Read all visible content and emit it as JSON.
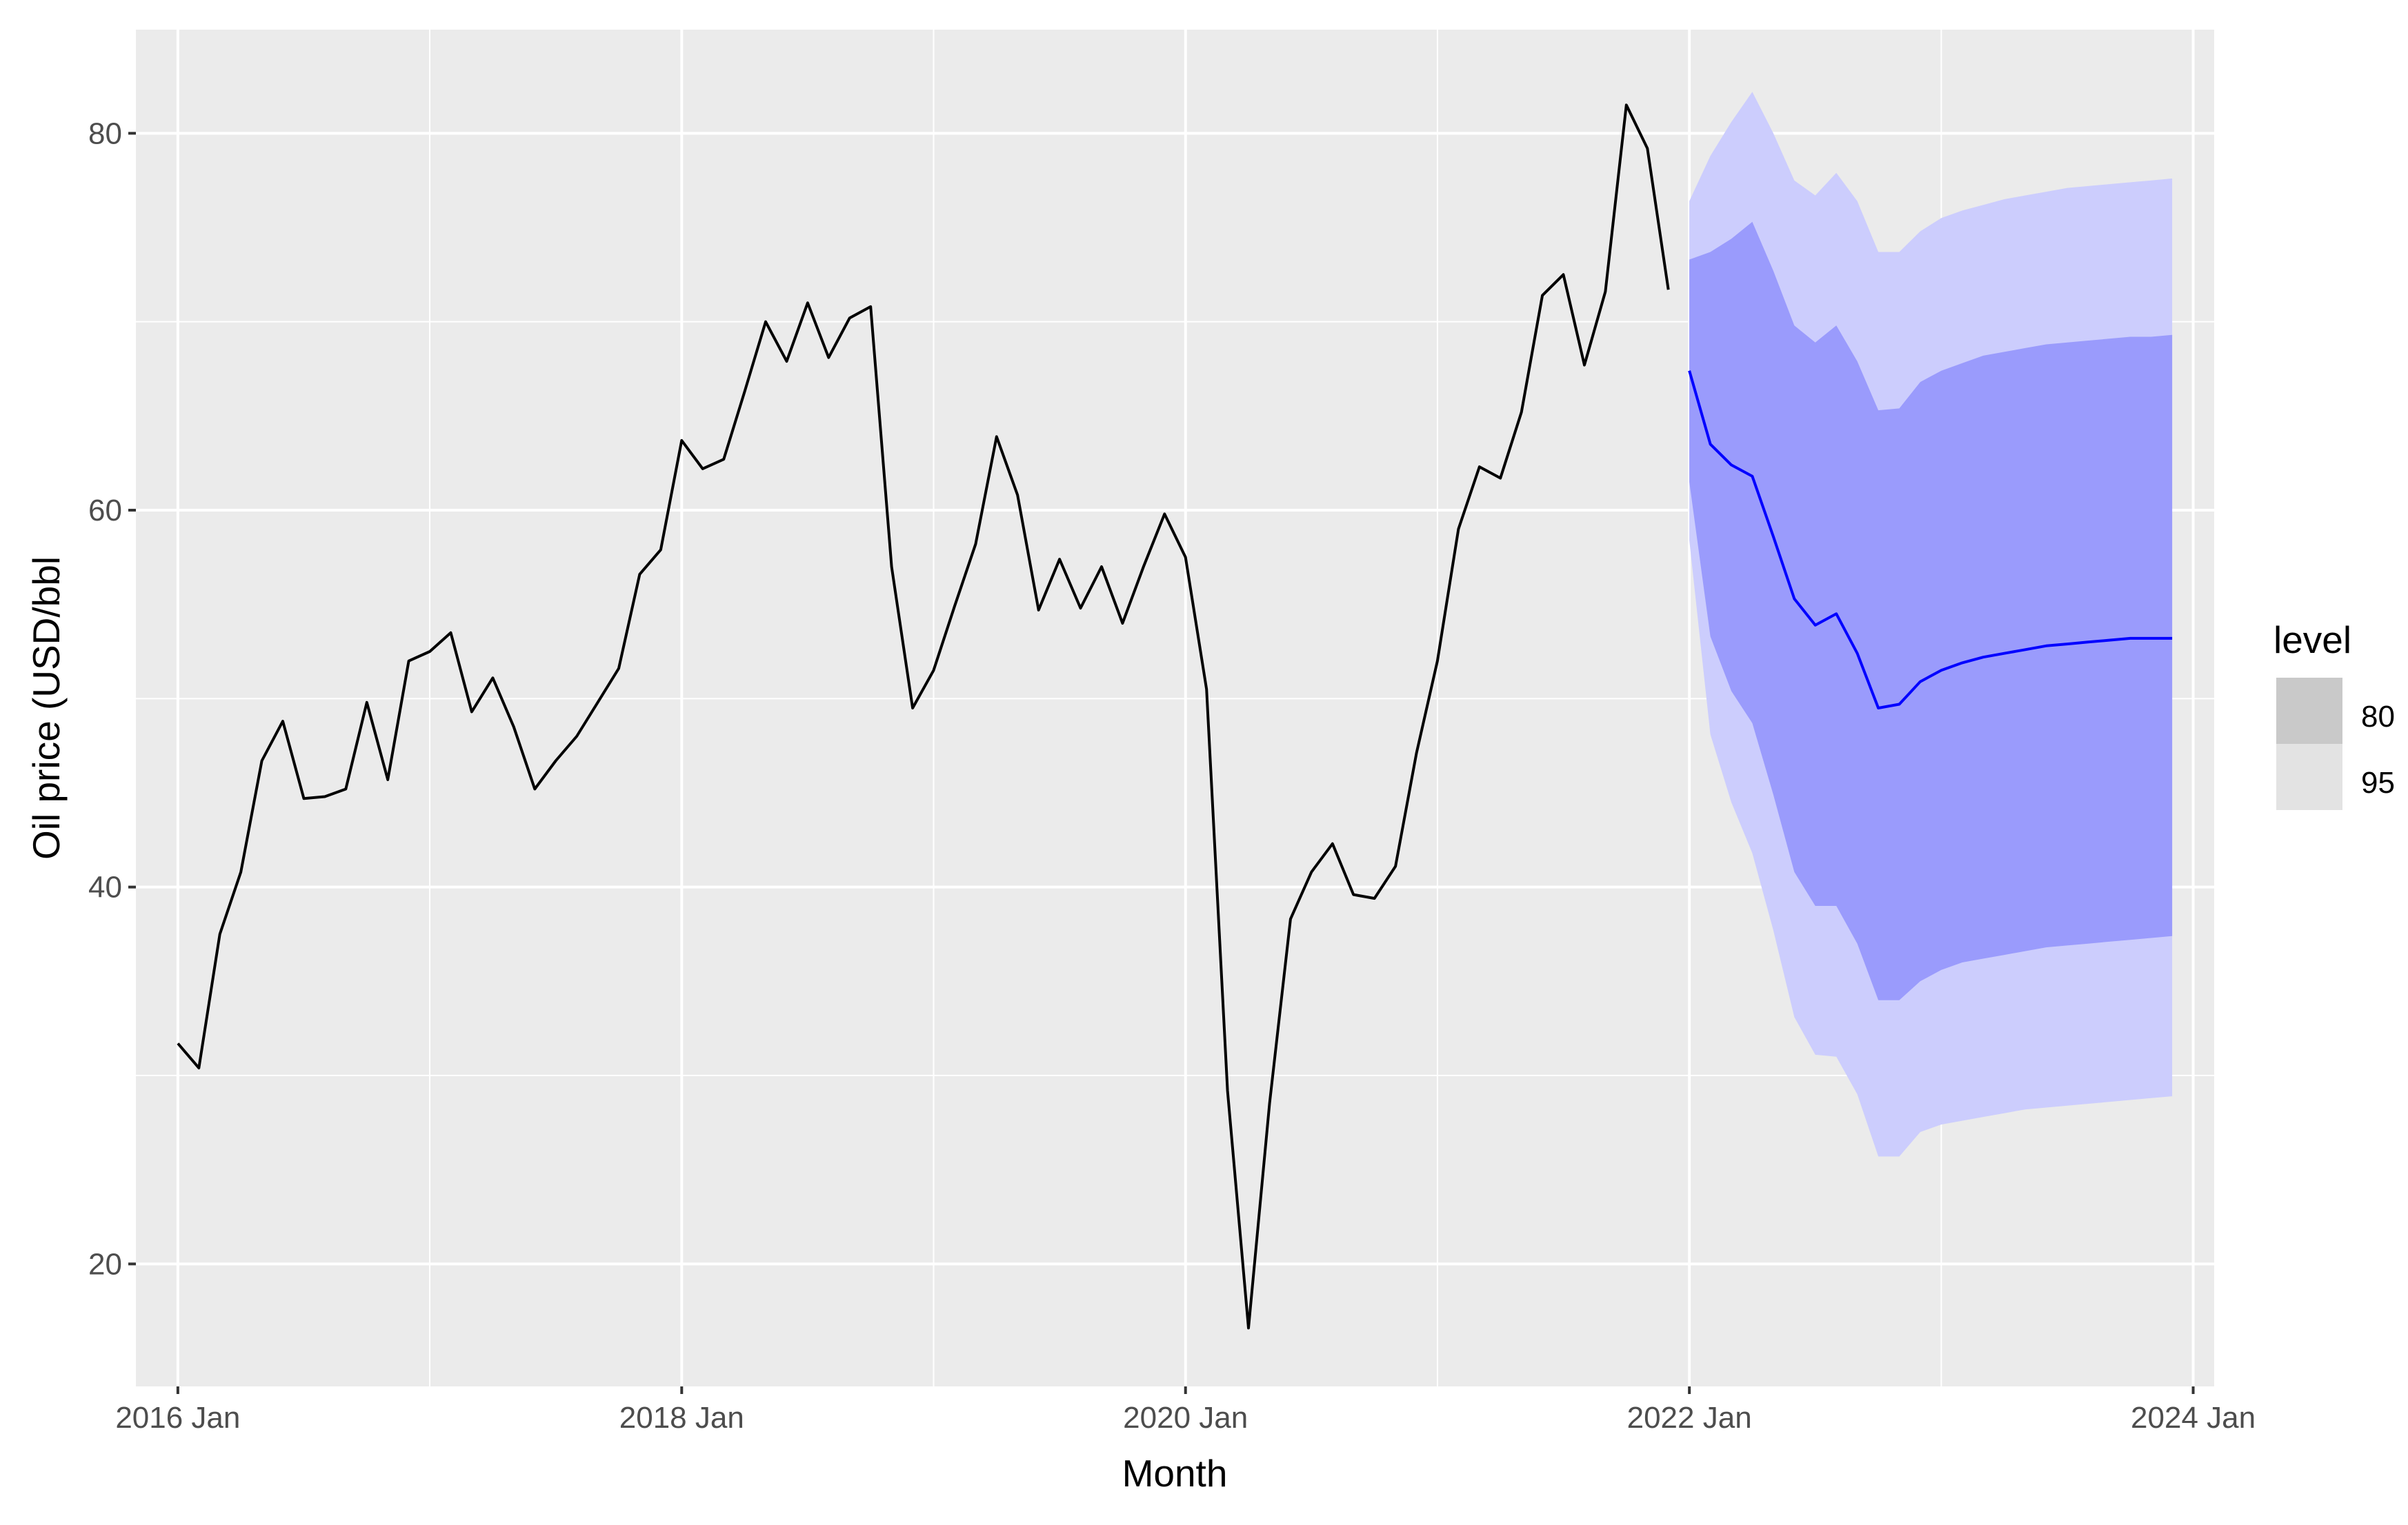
{
  "chart_data": {
    "type": "line",
    "title": "",
    "xlabel": "Month",
    "ylabel": "Oil price (USD/bbl",
    "x_ticks": [
      "2016 Jan",
      "2018 Jan",
      "2020 Jan",
      "2022 Jan",
      "2024 Jan"
    ],
    "y_ticks": [
      20,
      40,
      60,
      80
    ],
    "xlim": [
      "2015 Nov",
      "2024 Feb"
    ],
    "ylim": [
      13.5,
      85.5
    ],
    "grid": true,
    "legend": {
      "title": "level",
      "position": "right",
      "entries": [
        {
          "label": "80",
          "color": "#c9c9c9"
        },
        {
          "label": "95",
          "color": "#e3e3e3"
        }
      ]
    },
    "colors": {
      "panel_background": "#ebebeb",
      "grid": "#ffffff",
      "history_line": "#000000",
      "forecast_line": "#0000ff",
      "interval_95": "#cccdfd",
      "interval_80": "#9a9bfc"
    },
    "series": [
      {
        "name": "history",
        "x": [
          "2016-01",
          "2016-02",
          "2016-03",
          "2016-04",
          "2016-05",
          "2016-06",
          "2016-07",
          "2016-08",
          "2016-09",
          "2016-10",
          "2016-11",
          "2016-12",
          "2017-01",
          "2017-02",
          "2017-03",
          "2017-04",
          "2017-05",
          "2017-06",
          "2017-07",
          "2017-08",
          "2017-09",
          "2017-10",
          "2017-11",
          "2017-12",
          "2018-01",
          "2018-02",
          "2018-03",
          "2018-04",
          "2018-05",
          "2018-06",
          "2018-07",
          "2018-08",
          "2018-09",
          "2018-10",
          "2018-11",
          "2018-12",
          "2019-01",
          "2019-02",
          "2019-03",
          "2019-04",
          "2019-05",
          "2019-06",
          "2019-07",
          "2019-08",
          "2019-09",
          "2019-10",
          "2019-11",
          "2019-12",
          "2020-01",
          "2020-02",
          "2020-03",
          "2020-04",
          "2020-05",
          "2020-06",
          "2020-07",
          "2020-08",
          "2020-09",
          "2020-10",
          "2020-11",
          "2020-12",
          "2021-01",
          "2021-02",
          "2021-03",
          "2021-04",
          "2021-05",
          "2021-06",
          "2021-07",
          "2021-08",
          "2021-09",
          "2021-10",
          "2021-11",
          "2021-12"
        ],
        "values": [
          31.7,
          30.4,
          37.5,
          40.8,
          46.7,
          48.8,
          44.7,
          44.8,
          45.2,
          49.8,
          45.7,
          52.0,
          52.5,
          53.5,
          49.3,
          51.1,
          48.5,
          45.2,
          46.7,
          48.0,
          49.8,
          51.6,
          56.6,
          57.9,
          63.7,
          62.2,
          62.7,
          66.3,
          70.0,
          67.9,
          71.0,
          68.1,
          70.2,
          70.8,
          57.0,
          49.5,
          51.5,
          54.9,
          58.2,
          63.9,
          60.8,
          54.7,
          57.4,
          54.8,
          57.0,
          54.0,
          57.0,
          59.8,
          57.5,
          50.5,
          29.2,
          16.6,
          28.5,
          38.3,
          40.8,
          42.3,
          39.6,
          39.4,
          41.1,
          47.1,
          52.0,
          59.0,
          62.3,
          61.7,
          65.2,
          71.4,
          72.5,
          67.7,
          71.6,
          81.5,
          79.2,
          71.7
        ]
      },
      {
        "name": "forecast",
        "x": [
          "2022-01",
          "2022-02",
          "2022-03",
          "2022-04",
          "2022-05",
          "2022-06",
          "2022-07",
          "2022-08",
          "2022-09",
          "2022-10",
          "2022-11",
          "2022-12",
          "2023-01",
          "2023-02",
          "2023-03",
          "2023-04",
          "2023-05",
          "2023-06",
          "2023-07",
          "2023-08",
          "2023-09",
          "2023-10",
          "2023-11",
          "2023-12"
        ],
        "values": [
          67.4,
          63.5,
          62.4,
          61.8,
          58.6,
          55.3,
          53.9,
          54.5,
          52.4,
          49.5,
          49.7,
          50.9,
          51.5,
          51.9,
          52.2,
          52.4,
          52.6,
          52.8,
          52.9,
          53.0,
          53.1,
          53.2,
          53.2,
          53.2
        ],
        "lower_80": [
          61.5,
          53.3,
          50.4,
          48.7,
          44.9,
          40.8,
          39.0,
          39.0,
          37.0,
          34.0,
          34.0,
          35.0,
          35.6,
          36.0,
          36.2,
          36.4,
          36.6,
          36.8,
          36.9,
          37.0,
          37.1,
          37.2,
          37.3,
          37.4
        ],
        "upper_80": [
          73.3,
          73.7,
          74.4,
          75.3,
          72.7,
          69.8,
          68.9,
          69.8,
          67.9,
          65.3,
          65.4,
          66.8,
          67.4,
          67.8,
          68.2,
          68.4,
          68.6,
          68.8,
          68.9,
          69.0,
          69.1,
          69.2,
          69.2,
          69.3
        ],
        "lower_95": [
          58.4,
          48.1,
          44.5,
          41.8,
          37.7,
          33.1,
          31.1,
          31.0,
          29.0,
          25.7,
          25.7,
          27.0,
          27.4,
          27.6,
          27.8,
          28.0,
          28.2,
          28.3,
          28.4,
          28.5,
          28.6,
          28.7,
          28.8,
          28.9
        ],
        "upper_95": [
          76.4,
          78.8,
          80.6,
          82.2,
          80.0,
          77.5,
          76.7,
          77.9,
          76.4,
          73.7,
          73.7,
          74.8,
          75.5,
          75.9,
          76.2,
          76.5,
          76.7,
          76.9,
          77.1,
          77.2,
          77.3,
          77.4,
          77.5,
          77.6
        ]
      }
    ]
  }
}
